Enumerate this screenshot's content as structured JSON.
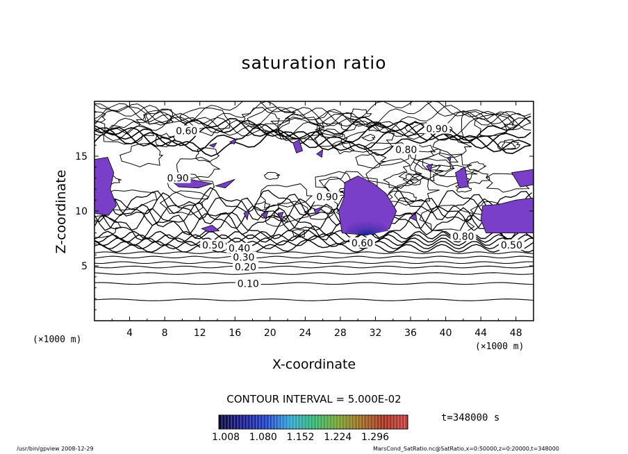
{
  "chart_data": {
    "type": "contour",
    "title": "saturation ratio",
    "xlabel": "X-coordinate",
    "ylabel": "Z-coordinate",
    "xunit": "(×1000 m)",
    "xlim": [
      0,
      50
    ],
    "ylim": [
      0,
      20
    ],
    "xticks": [
      "4",
      "8",
      "12",
      "16",
      "20",
      "24",
      "28",
      "32",
      "36",
      "40",
      "44",
      "48"
    ],
    "yticks": [
      "5",
      "10",
      "15"
    ],
    "contour_labels": [
      {
        "text": "0.10",
        "x": 17.5,
        "z": 3.4
      },
      {
        "text": "0.20",
        "x": 17.2,
        "z": 4.9
      },
      {
        "text": "0.30",
        "x": 17.0,
        "z": 5.8
      },
      {
        "text": "0.40",
        "x": 16.5,
        "z": 6.6
      },
      {
        "text": "0.50",
        "x": 13.5,
        "z": 6.9
      },
      {
        "text": "0.50",
        "x": 47.5,
        "z": 6.9
      },
      {
        "text": "0.60",
        "x": 30.5,
        "z": 7.1
      },
      {
        "text": "0.60",
        "x": 10.5,
        "z": 17.3
      },
      {
        "text": "0.80",
        "x": 42.0,
        "z": 7.7
      },
      {
        "text": "0.80",
        "x": 35.5,
        "z": 15.6
      },
      {
        "text": "0.90",
        "x": 39.0,
        "z": 17.5
      },
      {
        "text": "0.90",
        "x": 9.5,
        "z": 13.0
      },
      {
        "text": "0.90",
        "x": 26.5,
        "z": 11.3
      }
    ],
    "contour_interval_text": "CONTOUR INTERVAL = 5.000E-02",
    "time_text": "t=348000 s",
    "colorbar": {
      "ticks": [
        "1.008",
        "1.080",
        "1.152",
        "1.224",
        "1.296"
      ],
      "colors": [
        "#0a0a3a",
        "#1a1a8a",
        "#2040c0",
        "#30a0d0",
        "#30b070",
        "#70a030",
        "#9a6a20",
        "#a03020",
        "#c04040"
      ]
    },
    "fill_color": "#7a3fc8",
    "fill_deep_color": "#1a2a9a"
  },
  "footer": {
    "left": "/usr/bin/gpview   2008-12-29",
    "right": "MarsCond_SatRatio.nc@SatRatio,x=0:50000,z=0:20000,t=348000"
  }
}
